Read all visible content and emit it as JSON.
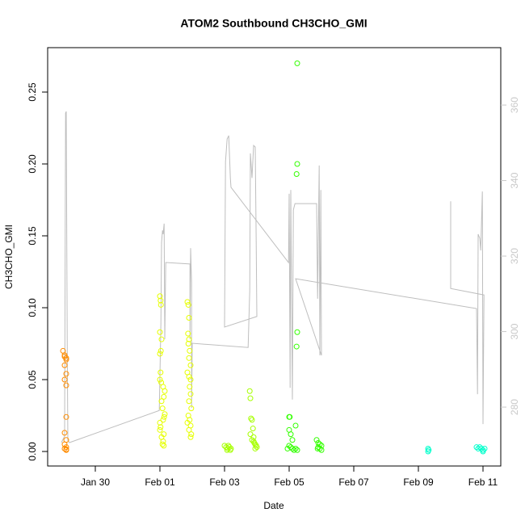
{
  "chart_data": {
    "type": "scatter",
    "title": "ATOM2 Southbound CH3CHO_GMI",
    "xlabel": "Date",
    "ylabel": "CH3CHO_GMI",
    "xlim": [
      28.525,
      42.55
    ],
    "ylim": [
      -0.0101,
      0.2809
    ],
    "y2lim": [
      264.4,
      375.2
    ],
    "xticks": [
      {
        "value": 30,
        "label": "Jan 30"
      },
      {
        "value": 32,
        "label": "Feb 01"
      },
      {
        "value": 34,
        "label": "Feb 03"
      },
      {
        "value": 36,
        "label": "Feb 05"
      },
      {
        "value": 38,
        "label": "Feb 07"
      },
      {
        "value": 40,
        "label": "Feb 09"
      },
      {
        "value": 42,
        "label": "Feb 11"
      }
    ],
    "yticks": [
      {
        "value": 0,
        "label": "0.00"
      },
      {
        "value": 0.05,
        "label": "0.05"
      },
      {
        "value": 0.1,
        "label": "0.10"
      },
      {
        "value": 0.15,
        "label": "0.15"
      },
      {
        "value": 0.2,
        "label": "0.20"
      },
      {
        "value": 0.25,
        "label": "0.25"
      }
    ],
    "y2ticks": [
      280,
      300,
      320,
      340,
      360
    ],
    "y2color": "#c8c8c8",
    "series": [
      {
        "color": "#ff8c00",
        "x": [
          29.0,
          29.05,
          29.05,
          29.1,
          29.1,
          29.05,
          29.1,
          29.05,
          29.1,
          29.1,
          29.05,
          29.1,
          29.05,
          29.1,
          29.05,
          29.1,
          29.1
        ],
        "values": [
          0.07,
          0.066,
          0.067,
          0.065,
          0.064,
          0.06,
          0.054,
          0.05,
          0.046,
          0.024,
          0.013,
          0.008,
          0.005,
          0.003,
          0.002,
          0.001,
          0.0015
        ]
      },
      {
        "color": "#e6ff00",
        "x": [
          32.0,
          32.02,
          32.03,
          32.0,
          32.05,
          32.03,
          32.0,
          32.02,
          32.0,
          32.04,
          32.1,
          32.15,
          32.12,
          32.05,
          32.08,
          32.15,
          32.13,
          32.1,
          32.0,
          32.02,
          32.0,
          32.12,
          32.05,
          32.1,
          32.08,
          32.12,
          32.85,
          32.88,
          32.9,
          32.87,
          32.9,
          32.88,
          32.92,
          32.9,
          32.95,
          32.85,
          32.9,
          32.95,
          32.92,
          32.95,
          32.9,
          32.97,
          32.88,
          32.92,
          32.85,
          32.95,
          32.9,
          32.97,
          32.95
        ],
        "values": [
          0.108,
          0.105,
          0.102,
          0.083,
          0.078,
          0.07,
          0.068,
          0.055,
          0.05,
          0.048,
          0.045,
          0.042,
          0.038,
          0.035,
          0.03,
          0.026,
          0.024,
          0.022,
          0.02,
          0.017,
          0.015,
          0.012,
          0.01,
          0.007,
          0.005,
          0.004,
          0.104,
          0.102,
          0.093,
          0.082,
          0.078,
          0.075,
          0.07,
          0.065,
          0.06,
          0.055,
          0.052,
          0.05,
          0.045,
          0.04,
          0.035,
          0.03,
          0.025,
          0.022,
          0.02,
          0.018,
          0.015,
          0.012,
          0.01
        ]
      },
      {
        "color": "#a6ff00",
        "x": [
          34.0,
          34.05,
          34.1,
          34.15,
          34.2,
          34.12,
          34.08,
          34.18,
          34.78,
          34.8,
          34.82,
          34.85,
          34.88,
          34.8,
          34.9,
          34.85,
          34.92,
          34.95,
          34.98,
          35.0,
          34.9,
          34.95
        ],
        "values": [
          0.004,
          0.003,
          0.002,
          0.003,
          0.002,
          0.004,
          0.001,
          0.001,
          0.042,
          0.037,
          0.023,
          0.022,
          0.016,
          0.012,
          0.01,
          0.008,
          0.006,
          0.005,
          0.004,
          0.003,
          0.007,
          0.002
        ]
      },
      {
        "color": "#33ff00",
        "x": [
          36.25,
          36.25,
          36.23,
          36.25,
          36.23,
          36.0,
          36.02,
          36.2,
          36.0,
          36.05,
          36.1,
          36.0,
          36.05,
          36.1,
          36.15,
          36.2,
          36.25,
          35.95,
          36.85,
          36.9,
          36.95,
          37.0,
          36.9,
          36.95,
          37.0,
          36.88
        ],
        "values": [
          0.27,
          0.2,
          0.193,
          0.083,
          0.073,
          0.024,
          0.024,
          0.018,
          0.015,
          0.012,
          0.008,
          0.004,
          0.003,
          0.002,
          0.001,
          0.002,
          0.001,
          0.002,
          0.008,
          0.006,
          0.005,
          0.004,
          0.003,
          0.002,
          0.001,
          0.002
        ]
      },
      {
        "color": "#00ffcc",
        "x": [
          40.3,
          40.32,
          40.3,
          41.8,
          41.85,
          41.9,
          41.95,
          42.0,
          42.05,
          42.0
        ],
        "values": [
          0.002,
          0.001,
          0.0,
          0.003,
          0.002,
          0.003,
          0.002,
          0.001,
          0.002,
          0.0
        ]
      },
      {
        "type": "line",
        "axis": "y2",
        "color": "#bebebe",
        "x": [
          28.95,
          29.05,
          29.08,
          29.1,
          29.13,
          29.15,
          29.2,
          31.98,
          32.03,
          32.05,
          32.08,
          32.1,
          32.13,
          32.15,
          32.18,
          32.93,
          32.93,
          32.95,
          32.98,
          32.98,
          33.0,
          34.73,
          34.78,
          34.8,
          34.85,
          34.9,
          34.95,
          34.98,
          35.0,
          34.0,
          34.03,
          34.08,
          34.13,
          34.18,
          34.2,
          35.98,
          36.0,
          36.03,
          36.05,
          36.1,
          36.13,
          36.18,
          36.85,
          36.88,
          36.93,
          36.95,
          36.98,
          37.0,
          36.2,
          41.8,
          41.83,
          41.85,
          41.9,
          41.93,
          41.98,
          42.0,
          42.03,
          41.0,
          41.0
        ],
        "values": [
          270.6,
          272.3,
          357.9,
          358.3,
          298.0,
          271.2,
          270.6,
          279.1,
          302.2,
          323.6,
          326.8,
          325.8,
          328.6,
          298.0,
          318.3,
          317.9,
          298.0,
          322.1,
          312.9,
          279.8,
          296.9,
          295.8,
          310.8,
          347.2,
          340.7,
          349.3,
          348.9,
          323.6,
          304.0,
          301.2,
          345.0,
          351.0,
          351.9,
          340.7,
          338.2,
          318.3,
          336.5,
          285.1,
          337.5,
          282.0,
          332.2,
          333.9,
          333.9,
          308.7,
          344.0,
          293.7,
          337.5,
          293.7,
          314.0,
          306.1,
          283.4,
          325.8,
          324.7,
          321.5,
          337.1,
          275.5,
          309.7,
          311.4,
          334.5
        ]
      }
    ]
  }
}
